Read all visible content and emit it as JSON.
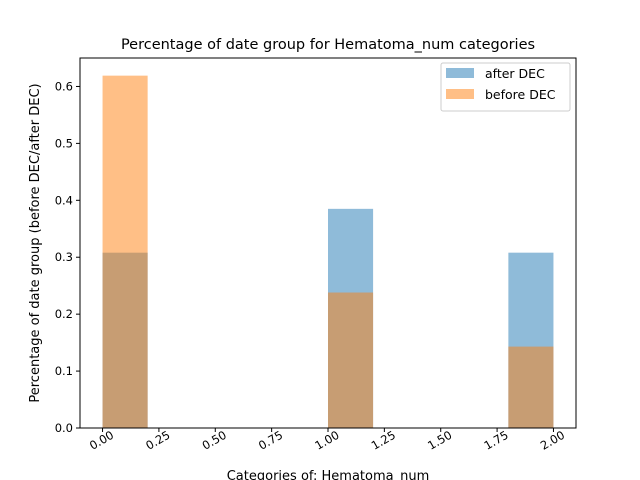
{
  "chart_data": {
    "type": "bar",
    "title": "Percentage of date group for Hematoma_num categories",
    "xlabel": "Categories of: Hematoma_num",
    "ylabel": "Percentage of date group (before DEC/after DEC)",
    "xlim": [
      -0.1,
      2.1
    ],
    "ylim": [
      0,
      0.65
    ],
    "xticks": [
      "0.00",
      "0.25",
      "0.50",
      "0.75",
      "1.00",
      "1.25",
      "1.50",
      "1.75",
      "2.00"
    ],
    "xtick_values": [
      0,
      0.25,
      0.5,
      0.75,
      1.0,
      1.25,
      1.5,
      1.75,
      2.0
    ],
    "yticks": [
      "0.0",
      "0.1",
      "0.2",
      "0.3",
      "0.4",
      "0.5",
      "0.6"
    ],
    "ytick_values": [
      0,
      0.1,
      0.2,
      0.3,
      0.4,
      0.5,
      0.6
    ],
    "legend_position": "top-right",
    "grid": false,
    "series": [
      {
        "name": "after DEC",
        "color": "#1f77b4",
        "opacity": 0.5,
        "bins": [
          [
            0.0,
            0.2
          ],
          [
            1.0,
            1.2
          ],
          [
            1.8,
            2.0
          ]
        ],
        "values": [
          0.308,
          0.385,
          0.308
        ]
      },
      {
        "name": "before DEC",
        "color": "#ff7f0e",
        "opacity": 0.5,
        "bins": [
          [
            0.0,
            0.2
          ],
          [
            1.0,
            1.2
          ],
          [
            1.8,
            2.0
          ]
        ],
        "values": [
          0.619,
          0.238,
          0.143
        ]
      }
    ]
  }
}
